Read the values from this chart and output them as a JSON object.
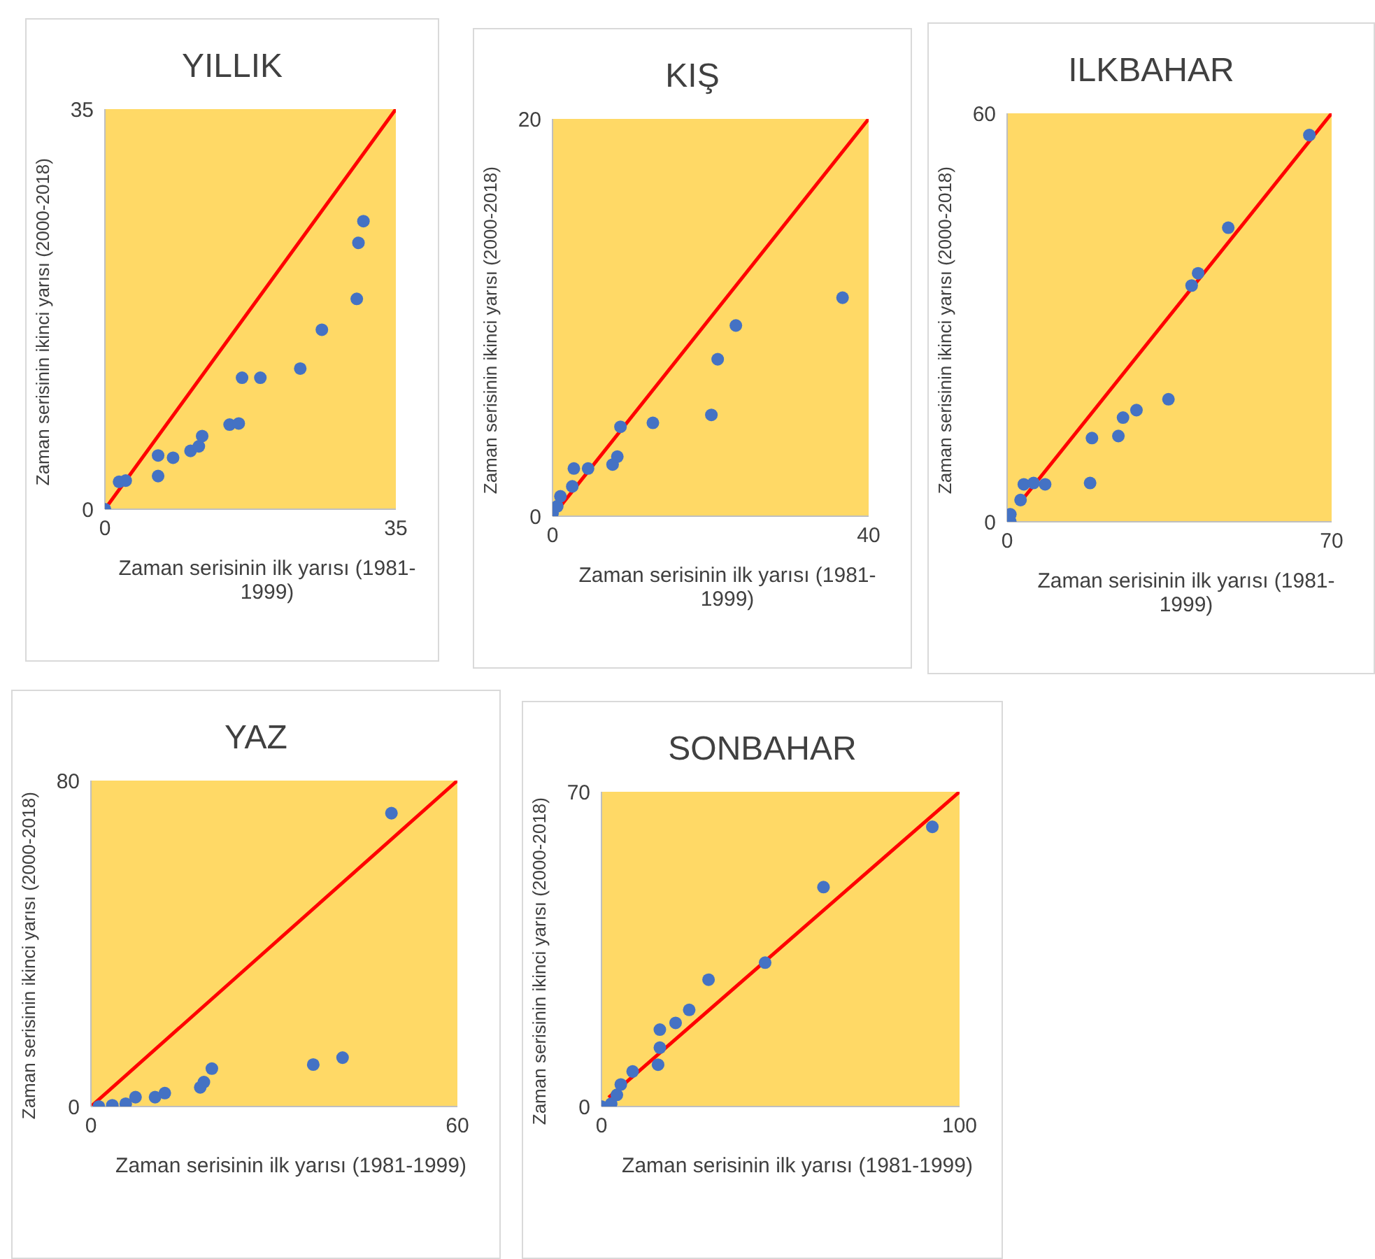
{
  "chart_data": [
    {
      "type": "scatter",
      "title": "YILLIK",
      "xlabel": "Zaman serisinin ilk yarısı (1981-1999)",
      "ylabel": "Zaman serisinin ikinci yarısı (2000-2018)",
      "xlim": [
        0,
        35
      ],
      "xticks": [
        0,
        35
      ],
      "ylim": [
        0,
        35
      ],
      "yticks": [
        0,
        35
      ],
      "marker": "circle",
      "series": [
        {
          "color": "#4472c4",
          "x": [
            0,
            1.7,
            2.5,
            6.4,
            6.4,
            8.2,
            10.3,
            11.3,
            11.7,
            15,
            16.1,
            16.5,
            18.7,
            23.5,
            26.1,
            30.3,
            30.5,
            31.1
          ],
          "values": [
            0,
            2.4,
            2.5,
            2.9,
            4.7,
            4.5,
            5.1,
            5.5,
            6.4,
            7.4,
            7.5,
            11.5,
            11.5,
            12.3,
            15.7,
            18.4,
            23.3,
            25.2
          ]
        },
        {
          "type": "line",
          "color": "#ff0000",
          "marker": "none",
          "x": [
            0,
            35
          ],
          "values": [
            0,
            35
          ]
        }
      ]
    },
    {
      "type": "scatter",
      "title": "KIŞ",
      "xlabel": "Zaman serisinin ilk yarısı (1981-1999)",
      "ylabel": "Zaman serisinin ikinci yarısı (2000-2018)",
      "xlim": [
        0,
        40
      ],
      "xticks": [
        0,
        40
      ],
      "ylim": [
        0,
        20
      ],
      "yticks": [
        0,
        20
      ],
      "marker": "circle",
      "series": [
        {
          "color": "#4472c4",
          "x": [
            0,
            0.6,
            1,
            2.5,
            2.7,
            4.5,
            7.6,
            8.2,
            8.6,
            12.7,
            20.1,
            20.9,
            23.2,
            36.7
          ],
          "values": [
            0.15,
            0.5,
            1,
            1.5,
            2.4,
            2.4,
            2.6,
            3,
            4.5,
            4.7,
            5.1,
            7.9,
            9.6,
            11
          ]
        },
        {
          "type": "line",
          "color": "#ff0000",
          "marker": "none",
          "x": [
            0,
            40
          ],
          "values": [
            0,
            20
          ]
        }
      ]
    },
    {
      "type": "scatter",
      "title": "ILKBAHAR",
      "xlabel": "Zaman serisinin ilk yarısı (1981-1999)",
      "ylabel": "Zaman serisinin ikinci yarısı (2000-2018)",
      "xlim": [
        0,
        70
      ],
      "xticks": [
        0,
        70
      ],
      "ylim": [
        0,
        60
      ],
      "yticks": [
        0,
        60
      ],
      "marker": "circle",
      "series": [
        {
          "color": "#4472c4",
          "x": [
            0.7,
            0.7,
            2.9,
            3.6,
            5.7,
            8.2,
            17.9,
            18.3,
            24,
            25,
            27.9,
            34.8,
            39.8,
            41.2,
            47.7,
            65.2
          ],
          "values": [
            0,
            1.1,
            3.2,
            5.5,
            5.7,
            5.5,
            5.7,
            12.3,
            12.6,
            15.3,
            16.4,
            18,
            34.7,
            36.5,
            43.2,
            56.8
          ]
        },
        {
          "type": "line",
          "color": "#ff0000",
          "marker": "none",
          "x": [
            3,
            70
          ],
          "values": [
            3,
            60
          ]
        }
      ]
    },
    {
      "type": "scatter",
      "title": "YAZ",
      "xlabel": "Zaman serisinin ilk yarısı (1981-1999)",
      "ylabel": "Zaman serisinin ikinci yarısı (2000-2018)",
      "xlim": [
        0,
        60
      ],
      "xticks": [
        0,
        60
      ],
      "ylim": [
        0,
        80
      ],
      "yticks": [
        0,
        80
      ],
      "marker": "circle",
      "series": [
        {
          "color": "#4472c4",
          "x": [
            1.3,
            3.5,
            5.7,
            7.3,
            10.5,
            12.1,
            17.9,
            18.5,
            19.8,
            36.4,
            41.2,
            49.2
          ],
          "values": [
            0,
            0.3,
            0.7,
            2.3,
            2.3,
            3.3,
            4.7,
            6,
            9.3,
            10.3,
            12,
            72
          ]
        },
        {
          "type": "line",
          "color": "#ff0000",
          "marker": "none",
          "x": [
            0,
            60
          ],
          "values": [
            0,
            80
          ]
        }
      ]
    },
    {
      "type": "scatter",
      "title": "SONBAHAR",
      "xlabel": "Zaman serisinin ilk yarısı (1981-1999)",
      "ylabel": "Zaman serisinin ikinci yarısı (2000-2018)",
      "xlim": [
        0,
        100
      ],
      "xticks": [
        0,
        100
      ],
      "ylim": [
        0,
        70
      ],
      "yticks": [
        0,
        70
      ],
      "marker": "circle",
      "series": [
        {
          "color": "#4472c4",
          "x": [
            0,
            2.7,
            4.3,
            5.4,
            8.7,
            15.8,
            16.3,
            16.3,
            20.7,
            24.5,
            29.9,
            45.7,
            62,
            92.4
          ],
          "values": [
            0,
            0.6,
            2.6,
            4.9,
            7.8,
            9.3,
            13.1,
            17.1,
            18.6,
            21.5,
            28.2,
            32,
            48.8,
            62.2
          ]
        },
        {
          "type": "line",
          "color": "#ff0000",
          "marker": "none",
          "x": [
            2,
            100
          ],
          "values": [
            2,
            70
          ]
        }
      ]
    }
  ]
}
